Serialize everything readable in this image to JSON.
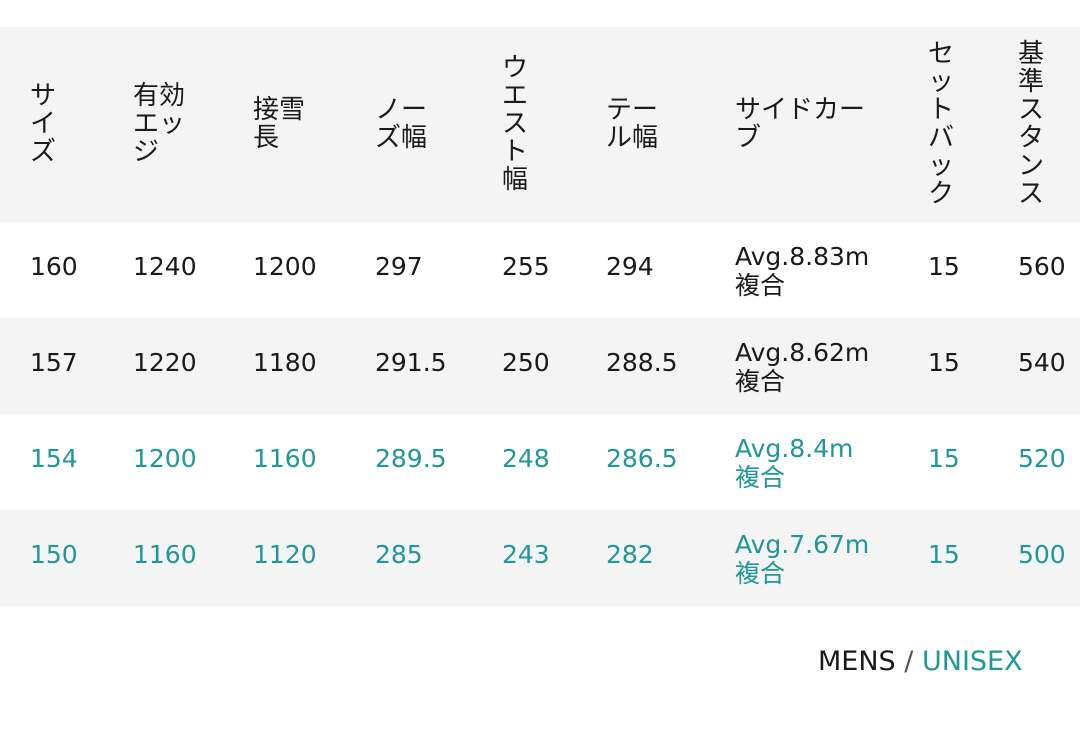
{
  "table": {
    "headers": [
      "サイズ",
      "有効エッジ",
      "接雪長",
      "ノーズ幅",
      "ウエスト幅",
      "テール幅",
      "サイドカーブ",
      "セットバック",
      "基準スタンス"
    ],
    "rows": [
      {
        "values": [
          "160",
          "1240",
          "1200",
          "297",
          "255",
          "294",
          "Avg.8.83m",
          "15",
          "560"
        ],
        "sidecut_type": "複合",
        "category": "MENS"
      },
      {
        "values": [
          "157",
          "1220",
          "1180",
          "291.5",
          "250",
          "288.5",
          "Avg.8.62m",
          "15",
          "540"
        ],
        "sidecut_type": "複合",
        "category": "MENS"
      },
      {
        "values": [
          "154",
          "1200",
          "1160",
          "289.5",
          "248",
          "286.5",
          "Avg.8.4m",
          "15",
          "520"
        ],
        "sidecut_type": "複合",
        "category": "UNISEX"
      },
      {
        "values": [
          "150",
          "1160",
          "1120",
          "285",
          "243",
          "282",
          "Avg.7.67m",
          "15",
          "500"
        ],
        "sidecut_type": "複合",
        "category": "UNISEX"
      }
    ]
  },
  "legend": {
    "mens": "MENS",
    "separator": "/",
    "unisex": "UNISEX"
  },
  "colors": {
    "accent": "#1f9896",
    "text": "#1a1a1a",
    "header_bg": "#f4f4f4"
  }
}
